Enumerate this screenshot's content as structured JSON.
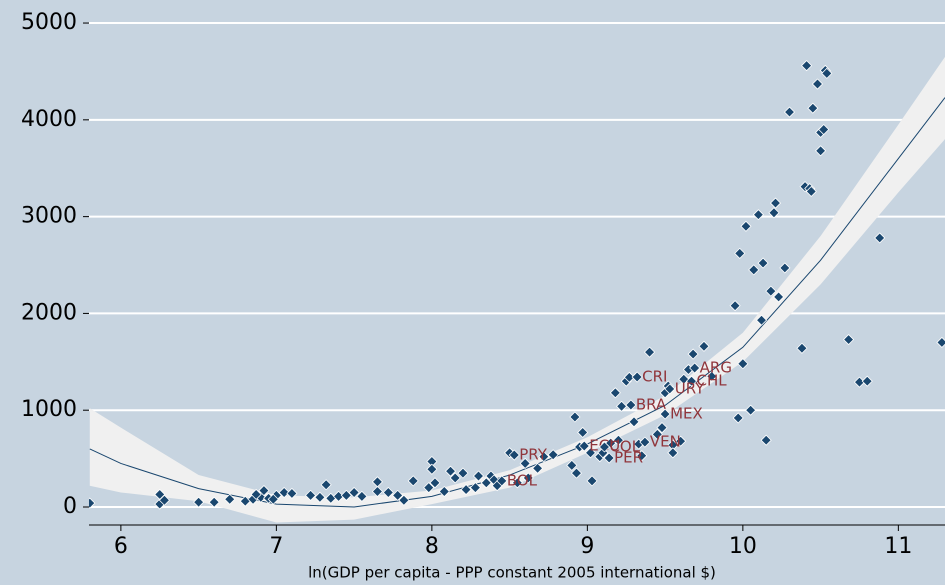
{
  "chart_data": {
    "type": "scatter",
    "xlabel": "ln(GDP per capita - PPP constant 2005 international $)",
    "xlim": [
      5.795,
      11.3
    ],
    "ylim": [
      -186,
      5238
    ],
    "xticks": [
      6,
      7,
      8,
      9,
      10,
      11
    ],
    "yticks": [
      0,
      1000,
      2000,
      3000,
      4000,
      5000
    ],
    "grid": true,
    "point_color": "#1a476f",
    "label_color": "#90353b",
    "points": {
      "x": [
        5.8,
        6.25,
        6.25,
        6.28,
        6.5,
        6.6,
        6.7,
        6.8,
        6.85,
        6.9,
        6.95,
        7.0,
        7.05,
        7.1,
        6.98,
        6.92,
        6.87,
        7.22,
        7.28,
        7.32,
        7.35,
        7.4,
        7.45,
        7.5,
        7.55,
        7.65,
        7.65,
        7.72,
        7.78,
        7.82,
        7.88,
        7.98,
        8.0,
        8.0,
        8.02,
        8.08,
        8.12,
        8.15,
        8.2,
        8.22,
        8.28,
        8.3,
        8.35,
        8.38,
        8.4,
        8.42,
        8.5,
        8.55,
        8.6,
        8.62,
        8.68,
        8.72,
        8.78,
        8.9,
        8.92,
        8.93,
        8.95,
        8.97,
        9.02,
        9.03,
        9.08,
        9.1,
        9.15,
        9.18,
        9.2,
        9.22,
        9.25,
        9.27,
        9.3,
        9.33,
        9.35,
        9.4,
        9.45,
        9.48,
        9.5,
        9.52,
        9.55,
        9.55,
        9.6,
        9.62,
        9.65,
        9.68,
        9.75,
        9.8,
        9.95,
        9.97,
        9.98,
        10.0,
        10.02,
        10.05,
        10.07,
        10.1,
        10.12,
        10.13,
        10.15,
        10.18,
        10.2,
        10.21,
        10.23,
        10.27,
        10.3,
        10.38,
        10.4,
        10.41,
        10.43,
        10.44,
        10.45,
        10.48,
        10.5,
        10.5,
        10.52,
        10.53,
        10.54,
        10.68,
        10.75,
        10.8,
        10.88,
        11.28
      ],
      "y": [
        40,
        130,
        30,
        70,
        50,
        50,
        80,
        60,
        80,
        100,
        90,
        120,
        150,
        140,
        80,
        170,
        130,
        120,
        100,
        230,
        90,
        110,
        120,
        150,
        110,
        160,
        260,
        150,
        120,
        70,
        270,
        200,
        470,
        390,
        250,
        160,
        370,
        300,
        350,
        180,
        200,
        320,
        250,
        320,
        280,
        220,
        560,
        250,
        450,
        300,
        400,
        520,
        540,
        430,
        930,
        350,
        620,
        770,
        560,
        270,
        520,
        560,
        660,
        1180,
        690,
        1040,
        1300,
        1340,
        880,
        650,
        530,
        1600,
        750,
        820,
        1180,
        1250,
        640,
        560,
        680,
        1320,
        1420,
        1580,
        1660,
        1350,
        2080,
        920,
        2620,
        1480,
        2900,
        1000,
        2450,
        3020,
        1930,
        2520,
        690,
        2230,
        3040,
        3140,
        2170,
        2470,
        4080,
        1640,
        3310,
        4560,
        3290,
        3260,
        4120,
        4370,
        3680,
        3870,
        3900,
        4510,
        4480,
        1730,
        1290,
        1300,
        2780,
        1700
      ]
    },
    "labeled_points": [
      {
        "label": "CRI",
        "x": 9.32,
        "y": 1343
      },
      {
        "label": "ARG",
        "x": 9.69,
        "y": 1436
      },
      {
        "label": "CHL",
        "x": 9.67,
        "y": 1300
      },
      {
        "label": "URY",
        "x": 9.53,
        "y": 1220
      },
      {
        "label": "BRA",
        "x": 9.28,
        "y": 1054
      },
      {
        "label": "MEX",
        "x": 9.5,
        "y": 960
      },
      {
        "label": "VEN",
        "x": 9.37,
        "y": 670
      },
      {
        "label": "ECU",
        "x": 8.98,
        "y": 630
      },
      {
        "label": "COL",
        "x": 9.11,
        "y": 620
      },
      {
        "label": "PER",
        "x": 9.14,
        "y": 506
      },
      {
        "label": "PRY",
        "x": 8.53,
        "y": 537
      },
      {
        "label": "BOL",
        "x": 8.45,
        "y": 270
      }
    ],
    "fit": {
      "color": "#1a476f",
      "band_color": "#f0f0f0",
      "x": [
        5.8,
        6,
        6.5,
        7,
        7.5,
        8,
        8.5,
        9,
        9.5,
        10,
        10.5,
        11,
        11.3
      ],
      "y": [
        600,
        450,
        190,
        30,
        0,
        110,
        330,
        650,
        1050,
        1650,
        2550,
        3600,
        4230
      ],
      "lower": [
        220,
        150,
        60,
        -160,
        -130,
        30,
        200,
        560,
        950,
        1500,
        2300,
        3250,
        3800
      ],
      "upper": [
        1020,
        820,
        330,
        120,
        100,
        170,
        380,
        720,
        1150,
        1800,
        2800,
        3950,
        4650
      ]
    }
  }
}
